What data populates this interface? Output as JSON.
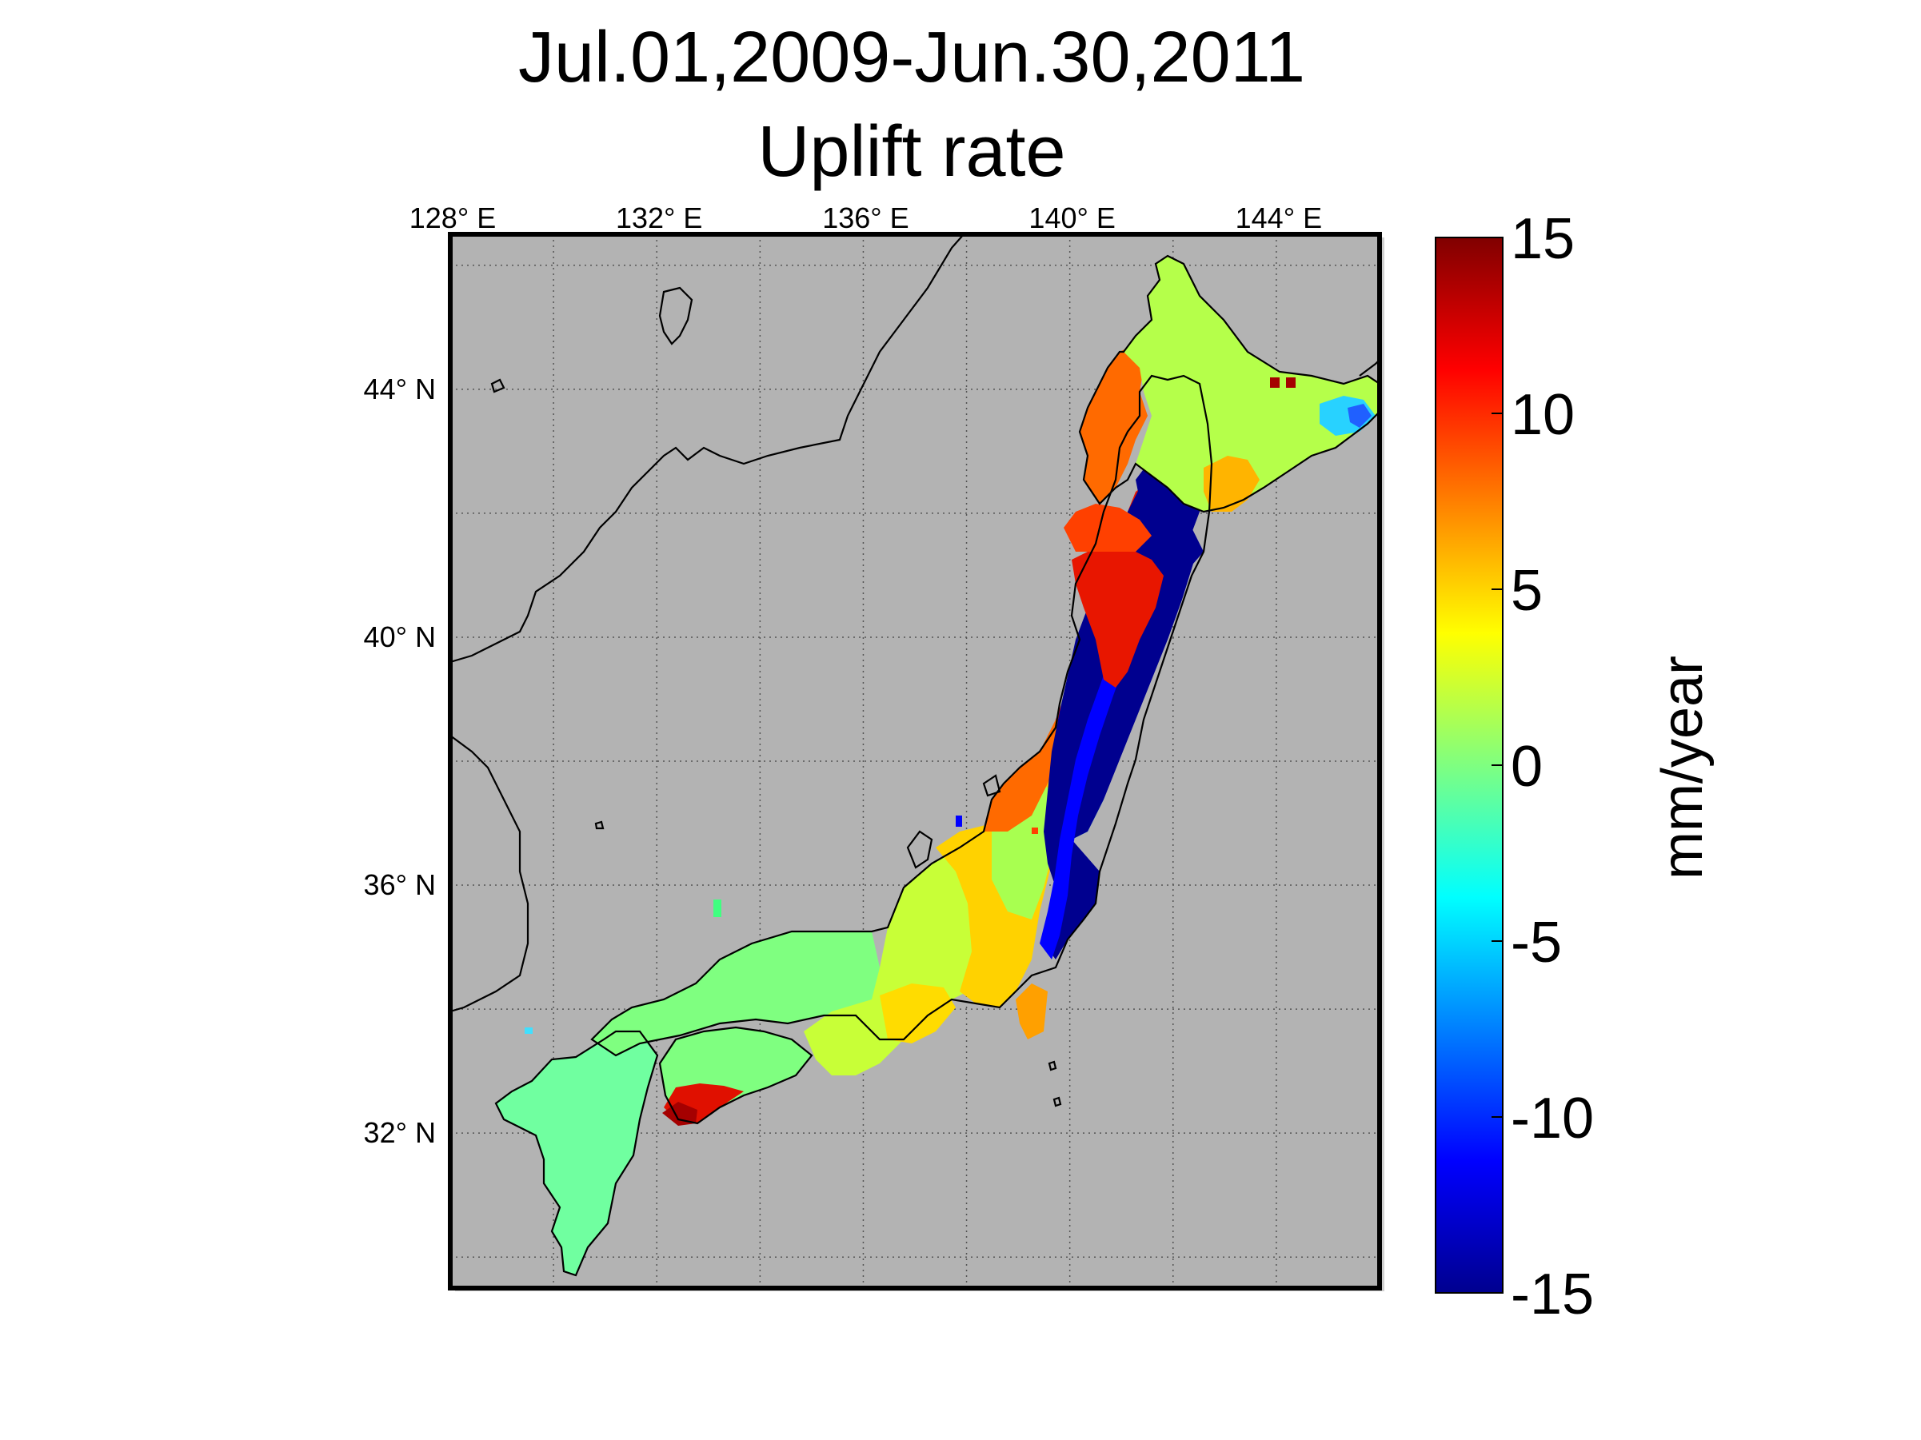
{
  "title": {
    "line1": "Jul.01,2009-Jun.30,2011",
    "line2": "Uplift rate"
  },
  "map": {
    "region": "Japan",
    "background_color": "#b3b3b3",
    "grid": "dotted",
    "longitude_ticks": [
      {
        "value": 128,
        "label": "128",
        "hemi": "E"
      },
      {
        "value": 132,
        "label": "132",
        "hemi": "E"
      },
      {
        "value": 136,
        "label": "136",
        "hemi": "E"
      },
      {
        "value": 140,
        "label": "140",
        "hemi": "E"
      },
      {
        "value": 144,
        "label": "144",
        "hemi": "E"
      }
    ],
    "latitude_ticks": [
      {
        "value": 44,
        "label": "44",
        "hemi": "N"
      },
      {
        "value": 40,
        "label": "40",
        "hemi": "N"
      },
      {
        "value": 36,
        "label": "36",
        "hemi": "N"
      },
      {
        "value": 32,
        "label": "32",
        "hemi": "N"
      }
    ],
    "degree_symbol": "°",
    "lon_range": [
      128,
      146
    ],
    "lat_range": [
      29.5,
      46.5
    ],
    "regions": [
      {
        "name": "Hokkaido",
        "uplift_mm_per_year": 2,
        "color": "#b5ff4a"
      },
      {
        "name": "Hokkaido east coast",
        "uplift_mm_per_year": -4,
        "color": "#28d2ff"
      },
      {
        "name": "Hokkaido southwest",
        "uplift_mm_per_year": 9,
        "color": "#ff6a00"
      },
      {
        "name": "Northern Tohoku west",
        "uplift_mm_per_year": 12,
        "color": "#e81600"
      },
      {
        "name": "Tohoku Pacific side",
        "uplift_mm_per_year": -15,
        "color": "#00008f"
      },
      {
        "name": "Central Honshu",
        "uplift_mm_per_year": 4,
        "color": "#ffd200"
      },
      {
        "name": "Western Honshu",
        "uplift_mm_per_year": 0,
        "color": "#7fff80"
      },
      {
        "name": "Shikoku",
        "uplift_mm_per_year": 0,
        "color": "#7fff80"
      },
      {
        "name": "Shikoku south cape",
        "uplift_mm_per_year": 14,
        "color": "#a50000"
      },
      {
        "name": "Kyushu",
        "uplift_mm_per_year": 0,
        "color": "#70ffa0"
      }
    ]
  },
  "colorbar": {
    "ticks": [
      "15",
      "10",
      "5",
      "0",
      "-5",
      "-10",
      "-15"
    ],
    "tick_values": [
      15,
      10,
      5,
      0,
      -5,
      -10,
      -15
    ],
    "label": "mm/year",
    "colormap": "jet",
    "min": -15,
    "max": 15
  }
}
